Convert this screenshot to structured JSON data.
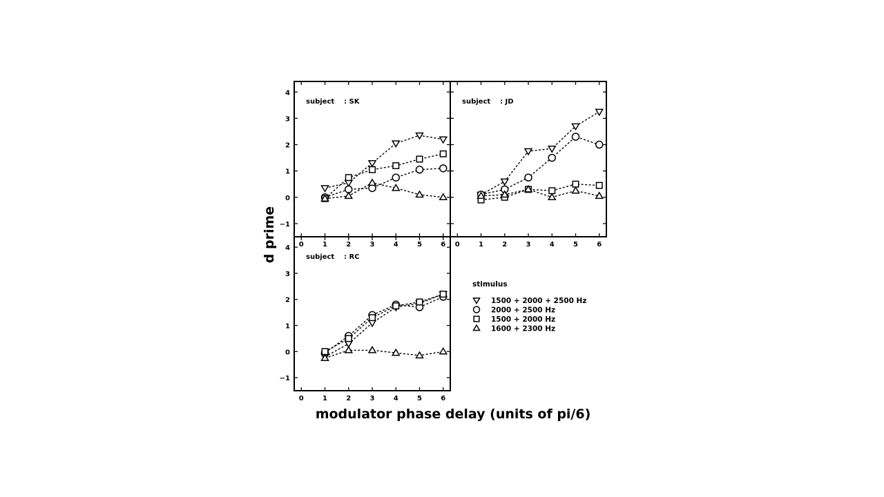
{
  "figure": {
    "xlabel": "modulator phase delay (units of pi/6)",
    "ylabel": "d prime"
  },
  "legend": {
    "title": "stimulus",
    "items": [
      {
        "marker": "triangle-down",
        "label": "1500 + 2000 + 2500 Hz"
      },
      {
        "marker": "circle",
        "label": "2000 + 2500 Hz"
      },
      {
        "marker": "square",
        "label": "1500 + 2000 Hz"
      },
      {
        "marker": "triangle-up",
        "label": "1600 + 2300 Hz"
      }
    ]
  },
  "chart_data": [
    {
      "type": "line",
      "panel": "top-left",
      "annotation": "subject    : SK",
      "x": [
        1,
        2,
        3,
        4,
        5,
        6
      ],
      "xlim": [
        -0.3,
        6.3
      ],
      "ylim": [
        -1.5,
        4.4
      ],
      "xticks": [
        0,
        1,
        2,
        3,
        4,
        5,
        6
      ],
      "yticks": [
        -1,
        0,
        1,
        2,
        3,
        4
      ],
      "series": [
        {
          "name": "1500 + 2000 + 2500 Hz",
          "marker": "triangle-down",
          "values": [
            0.35,
            0.55,
            1.3,
            2.05,
            2.35,
            2.2
          ]
        },
        {
          "name": "2000 + 2500 Hz",
          "marker": "circle",
          "values": [
            0.0,
            0.3,
            0.35,
            0.75,
            1.05,
            1.1
          ]
        },
        {
          "name": "1500 + 2000 Hz",
          "marker": "square",
          "values": [
            -0.05,
            0.75,
            1.05,
            1.2,
            1.45,
            1.65
          ]
        },
        {
          "name": "1600 + 2300 Hz",
          "marker": "triangle-up",
          "values": [
            -0.05,
            0.05,
            0.55,
            0.35,
            0.1,
            0.0
          ]
        }
      ]
    },
    {
      "type": "line",
      "panel": "top-right",
      "annotation": "subject    : JD",
      "x": [
        1,
        2,
        3,
        4,
        5,
        6
      ],
      "xlim": [
        -0.3,
        6.3
      ],
      "ylim": [
        -1.5,
        4.4
      ],
      "xticks": [
        0,
        1,
        2,
        3,
        4,
        5,
        6
      ],
      "yticks": [
        -1,
        0,
        1,
        2,
        3,
        4
      ],
      "series": [
        {
          "name": "1500 + 2000 + 2500 Hz",
          "marker": "triangle-down",
          "values": [
            0.1,
            0.6,
            1.75,
            1.85,
            2.7,
            3.25
          ]
        },
        {
          "name": "2000 + 2500 Hz",
          "marker": "circle",
          "values": [
            0.1,
            0.3,
            0.75,
            1.5,
            2.3,
            2.0
          ]
        },
        {
          "name": "1500 + 2000 Hz",
          "marker": "square",
          "values": [
            -0.1,
            0.0,
            0.3,
            0.25,
            0.5,
            0.45
          ]
        },
        {
          "name": "1600 + 2300 Hz",
          "marker": "triangle-up",
          "values": [
            0.05,
            0.1,
            0.3,
            0.0,
            0.25,
            0.05
          ]
        }
      ]
    },
    {
      "type": "line",
      "panel": "bottom-left",
      "annotation": "subject    : RC",
      "x": [
        1,
        2,
        3,
        4,
        5,
        6
      ],
      "xlim": [
        -0.3,
        6.3
      ],
      "ylim": [
        -1.5,
        4.4
      ],
      "xticks": [
        0,
        1,
        2,
        3,
        4,
        5,
        6
      ],
      "yticks": [
        -1,
        0,
        1,
        2,
        3,
        4
      ],
      "series": [
        {
          "name": "1500 + 2000 + 2500 Hz",
          "marker": "triangle-down",
          "values": [
            -0.2,
            0.3,
            1.1,
            1.7,
            1.85,
            2.2
          ]
        },
        {
          "name": "2000 + 2500 Hz",
          "marker": "circle",
          "values": [
            -0.05,
            0.6,
            1.4,
            1.8,
            1.7,
            2.1
          ]
        },
        {
          "name": "1500 + 2000 Hz",
          "marker": "square",
          "values": [
            0.0,
            0.5,
            1.3,
            1.75,
            1.9,
            2.2
          ]
        },
        {
          "name": "1600 + 2300 Hz",
          "marker": "triangle-up",
          "values": [
            -0.25,
            0.05,
            0.05,
            -0.05,
            -0.15,
            0.0
          ]
        }
      ]
    }
  ]
}
